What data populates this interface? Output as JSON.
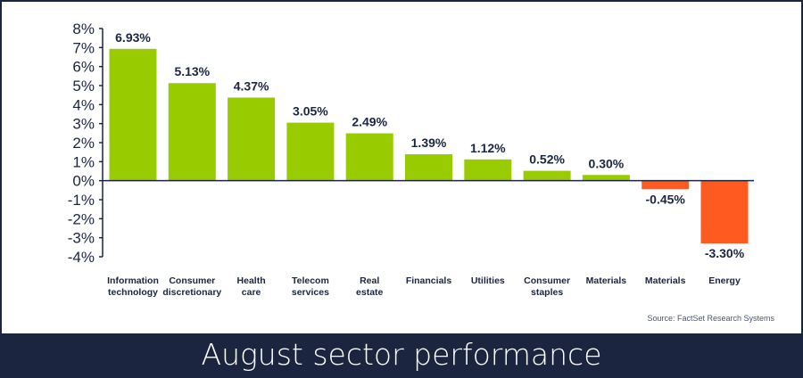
{
  "title": "August sector performance",
  "source": "Source: FactSet Research Systems",
  "colors": {
    "positive": "#99cc00",
    "negative": "#ff5a1f",
    "navy": "#1b2540"
  },
  "chart_data": {
    "type": "bar",
    "title": "August sector performance",
    "categories": [
      [
        "Information",
        "technology"
      ],
      [
        "Consumer",
        "discretionary"
      ],
      [
        "Health",
        "care"
      ],
      [
        "Telecom",
        "services"
      ],
      [
        "Real",
        "estate"
      ],
      [
        "Financials"
      ],
      [
        "Utilities"
      ],
      [
        "Consumer",
        "staples"
      ],
      [
        "Materials"
      ],
      [
        "Materials"
      ],
      [
        "Energy"
      ]
    ],
    "values": [
      6.93,
      5.13,
      4.37,
      3.05,
      2.49,
      1.39,
      1.12,
      0.52,
      0.3,
      -0.45,
      -3.3
    ],
    "labels": [
      "6.93%",
      "5.13%",
      "4.37%",
      "3.05%",
      "2.49%",
      "1.39%",
      "1.12%",
      "0.52%",
      "0.30%",
      "-0.45%",
      "-3.30%"
    ],
    "ylim": [
      -4,
      8
    ],
    "yticks": [
      "8%",
      "7%",
      "6%",
      "5%",
      "4%",
      "3%",
      "2%",
      "1%",
      "0%",
      "-1%",
      "-2%",
      "-3%",
      "-4%"
    ],
    "xlabel": "",
    "ylabel": "",
    "grid": false,
    "legend": "none"
  }
}
